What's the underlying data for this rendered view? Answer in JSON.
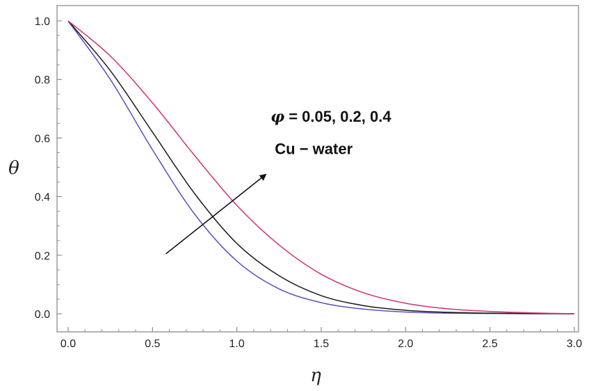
{
  "chart_data": {
    "type": "line",
    "xlabel": "η",
    "ylabel": "θ",
    "xlim": [
      0,
      3
    ],
    "ylim": [
      -0.05,
      1.05
    ],
    "xticks": [
      "0.0",
      "0.5",
      "1.0",
      "1.5",
      "2.0",
      "2.5",
      "3.0"
    ],
    "yticks": [
      "0.0",
      "0.2",
      "0.4",
      "0.6",
      "0.8",
      "1.0"
    ],
    "grid": false,
    "annotation": {
      "line1_symbol": "φ",
      "line1_text": " = 0.05, 0.2, 0.4",
      "line2": "Cu − water",
      "arrow": "increasing φ"
    },
    "series": [
      {
        "color": "#5b4fc4",
        "x": [
          0,
          0.25,
          0.5,
          0.75,
          1.0,
          1.25,
          1.5,
          1.75,
          2.0,
          2.25,
          2.5,
          2.75,
          3.0
        ],
        "y": [
          1.0,
          0.8,
          0.56,
          0.34,
          0.18,
          0.085,
          0.038,
          0.016,
          0.006,
          0.002,
          0.001,
          0.0,
          0.0
        ]
      },
      {
        "color": "#1a1a1a",
        "x": [
          0,
          0.25,
          0.5,
          0.75,
          1.0,
          1.25,
          1.5,
          1.75,
          2.0,
          2.25,
          2.5,
          2.75,
          3.0
        ],
        "y": [
          1.0,
          0.83,
          0.62,
          0.41,
          0.24,
          0.13,
          0.062,
          0.028,
          0.012,
          0.005,
          0.002,
          0.001,
          0.0
        ]
      },
      {
        "color": "#d0336b",
        "x": [
          0,
          0.25,
          0.5,
          0.75,
          1.0,
          1.25,
          1.5,
          1.75,
          2.0,
          2.25,
          2.5,
          2.75,
          3.0
        ],
        "y": [
          1.0,
          0.88,
          0.72,
          0.54,
          0.37,
          0.235,
          0.135,
          0.072,
          0.036,
          0.017,
          0.008,
          0.003,
          0.0
        ]
      }
    ]
  }
}
